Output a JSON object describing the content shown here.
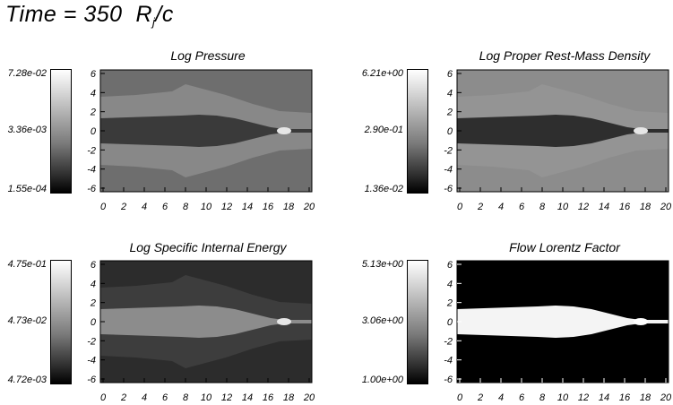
{
  "figure": {
    "title_prefix": "Time = ",
    "time_value": "350",
    "unit_main": "R",
    "unit_sub": "j",
    "unit_tail": "/c"
  },
  "panels": [
    {
      "id": "log-pressure",
      "title": "Log Pressure",
      "colorbar": {
        "max": "7.28e-02",
        "mid": "3.36e-03",
        "min": "1.55e-04"
      },
      "x_ticks": [
        "0",
        "2",
        "4",
        "6",
        "8",
        "10",
        "12",
        "14",
        "16",
        "18",
        "20"
      ],
      "y_ticks": [
        "6",
        "4",
        "2",
        "0",
        "-2",
        "-4",
        "-6"
      ],
      "background": "#6e6e6e",
      "jet_fill": "#3a3a3a"
    },
    {
      "id": "log-density",
      "title": "Log Proper Rest-Mass Density",
      "colorbar": {
        "max": "6.21e+00",
        "mid": "2.90e-01",
        "min": "1.36e-02"
      },
      "x_ticks": [
        "0",
        "2",
        "4",
        "6",
        "8",
        "10",
        "12",
        "14",
        "16",
        "18",
        "20"
      ],
      "y_ticks": [
        "6",
        "4",
        "2",
        "0",
        "-2",
        "-4",
        "-6"
      ],
      "background": "#8c8c8c",
      "jet_fill": "#2e2e2e"
    },
    {
      "id": "log-internal-energy",
      "title": "Log Specific Internal Energy",
      "colorbar": {
        "max": "4.75e-01",
        "mid": "4.73e-02",
        "min": "4.72e-03"
      },
      "x_ticks": [
        "0",
        "2",
        "4",
        "6",
        "8",
        "10",
        "12",
        "14",
        "16",
        "18",
        "20"
      ],
      "y_ticks": [
        "6",
        "4",
        "2",
        "0",
        "-2",
        "-4",
        "-6"
      ],
      "background": "#2c2c2c",
      "jet_fill": "#8c8c8c"
    },
    {
      "id": "lorentz-factor",
      "title": "Flow Lorentz Factor",
      "colorbar": {
        "max": "5.13e+00",
        "mid": "3.06e+00",
        "min": "1.00e+00"
      },
      "x_ticks": [
        "0",
        "2",
        "4",
        "6",
        "8",
        "10",
        "12",
        "14",
        "16",
        "18",
        "20"
      ],
      "y_ticks": [
        "6",
        "4",
        "2",
        "0",
        "-2",
        "-4",
        "-6"
      ],
      "background": "#000000",
      "jet_fill": "#f4f4f4"
    }
  ]
}
